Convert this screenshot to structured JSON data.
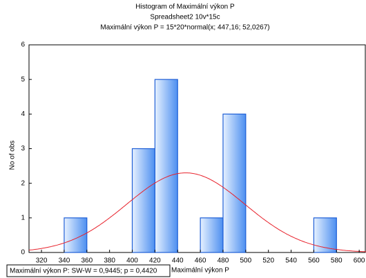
{
  "chart_data": {
    "type": "histogram",
    "title": "Histogram of Maximální výkon P",
    "subtitle": "Spreadsheet2 10v*15c",
    "formula": "Maximální výkon P = 15*20*normal(x; 447,16; 52,0267)",
    "xlabel": "Maximální výkon P",
    "ylabel": "No of obs",
    "stats_text": "Maximální výkon P:  SW-W = 0,9445; p = 0,4420",
    "bins": [
      340,
      360,
      380,
      400,
      420,
      440,
      460,
      480,
      500,
      520,
      540,
      560,
      580
    ],
    "counts": [
      1,
      0,
      0,
      3,
      5,
      0,
      1,
      4,
      0,
      0,
      0,
      1
    ],
    "color": "#1f5fd6",
    "fit": {
      "mean": 447.16,
      "sd": 52.0267,
      "count": 15,
      "bin_width": 20,
      "color": "#e8202a"
    },
    "xlim": [
      309,
      606
    ],
    "xticks": [
      320,
      340,
      360,
      380,
      400,
      420,
      440,
      460,
      480,
      500,
      520,
      540,
      560,
      580,
      600
    ],
    "ylim": [
      0,
      6
    ],
    "yticks": [
      0,
      1,
      2,
      3,
      4,
      5,
      6
    ]
  }
}
